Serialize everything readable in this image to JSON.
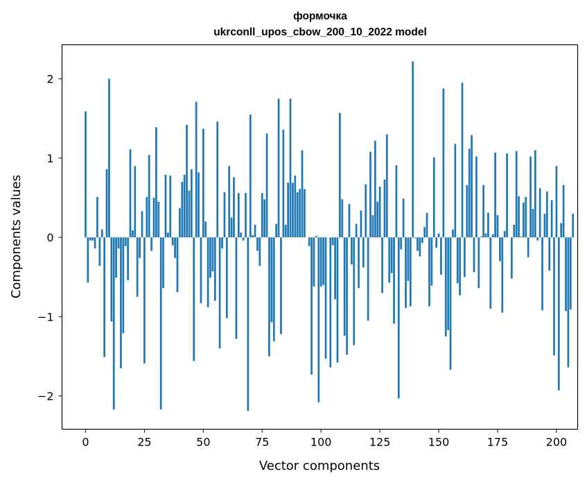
{
  "chart_data": {
    "type": "bar",
    "title_line1": "формочка",
    "title_line2": "ukrconll_upos_cbow_200_10_2022 model",
    "xlabel": "Vector components",
    "ylabel": "Components values",
    "xlim": [
      -10,
      209
    ],
    "ylim": [
      -2.42,
      2.43
    ],
    "xticks": [
      0,
      25,
      50,
      75,
      100,
      125,
      150,
      175,
      200
    ],
    "xtick_labels": [
      "0",
      "25",
      "50",
      "75",
      "100",
      "125",
      "150",
      "175",
      "200"
    ],
    "yticks": [
      -2,
      -1,
      0,
      1,
      2
    ],
    "ytick_labels": [
      "−2",
      "−1",
      "0",
      "1",
      "2"
    ],
    "bar_color": "#1f77b4",
    "grid": false,
    "values": [
      1.59,
      -0.57,
      -0.04,
      -0.04,
      -0.14,
      0.51,
      -0.36,
      0.1,
      -1.51,
      0.86,
      2.0,
      -1.06,
      -2.17,
      -0.51,
      -0.14,
      -1.65,
      -1.21,
      -0.11,
      -0.54,
      1.11,
      0.09,
      0.9,
      -0.75,
      -0.26,
      0.33,
      -1.59,
      0.51,
      1.04,
      -0.17,
      0.5,
      1.39,
      0.45,
      -2.17,
      -0.64,
      0.79,
      0.06,
      0.78,
      -0.1,
      -0.26,
      -0.69,
      0.37,
      0.7,
      0.79,
      1.42,
      0.59,
      0.86,
      -1.56,
      1.71,
      0.82,
      -0.83,
      1.37,
      0.2,
      -0.88,
      -0.51,
      -0.43,
      -0.8,
      1.46,
      -1.4,
      -0.14,
      0.57,
      -1.02,
      0.9,
      0.25,
      0.76,
      -1.28,
      0.56,
      0.06,
      -0.04,
      0.56,
      -2.19,
      1.55,
      0.03,
      0.16,
      -0.17,
      -0.36,
      0.56,
      0.48,
      1.31,
      -1.5,
      -1.07,
      -1.31,
      0.17,
      1.75,
      -1.22,
      1.36,
      0.16,
      0.69,
      1.75,
      0.69,
      0.78,
      0.57,
      0.61,
      1.1,
      0.61,
      0.0,
      -0.11,
      -1.73,
      -0.62,
      0.02,
      -2.08,
      -0.62,
      -0.6,
      -1.53,
      0.0,
      -1.64,
      -0.1,
      -0.78,
      -1.58,
      1.57,
      0.48,
      -1.24,
      -1.48,
      0.42,
      -0.34,
      -1.36,
      0.17,
      -0.64,
      0.34,
      -0.38,
      0.67,
      -1.05,
      1.08,
      0.28,
      1.22,
      0.45,
      0.64,
      -0.7,
      0.73,
      1.3,
      -0.57,
      -0.45,
      -1.09,
      0.91,
      -2.03,
      -0.15,
      0.49,
      -0.89,
      -0.55,
      -0.87,
      2.22,
      -0.01,
      -0.17,
      -0.24,
      -0.07,
      0.13,
      0.31,
      -0.87,
      -0.61,
      1.01,
      -0.13,
      0.05,
      -0.47,
      1.88,
      -1.25,
      -1.17,
      -1.67,
      0.1,
      1.18,
      -0.58,
      -0.73,
      1.95,
      -0.5,
      0.66,
      1.12,
      1.29,
      -0.44,
      1.02,
      -0.64,
      0.01,
      0.66,
      0.05,
      0.31,
      -0.9,
      0.04,
      1.07,
      0.28,
      -0.3,
      -0.95,
      0.08,
      1.06,
      0.0,
      -0.52,
      0.16,
      1.09,
      0.52,
      0.01,
      0.44,
      0.51,
      -0.25,
      1.02,
      0.36,
      1.1,
      -0.04,
      0.62,
      -0.92,
      0.3,
      0.58,
      -0.42,
      0.47,
      -1.49,
      0.9,
      -1.93,
      0.18,
      0.66,
      -0.93,
      -1.64,
      -0.91,
      0.3
    ]
  }
}
